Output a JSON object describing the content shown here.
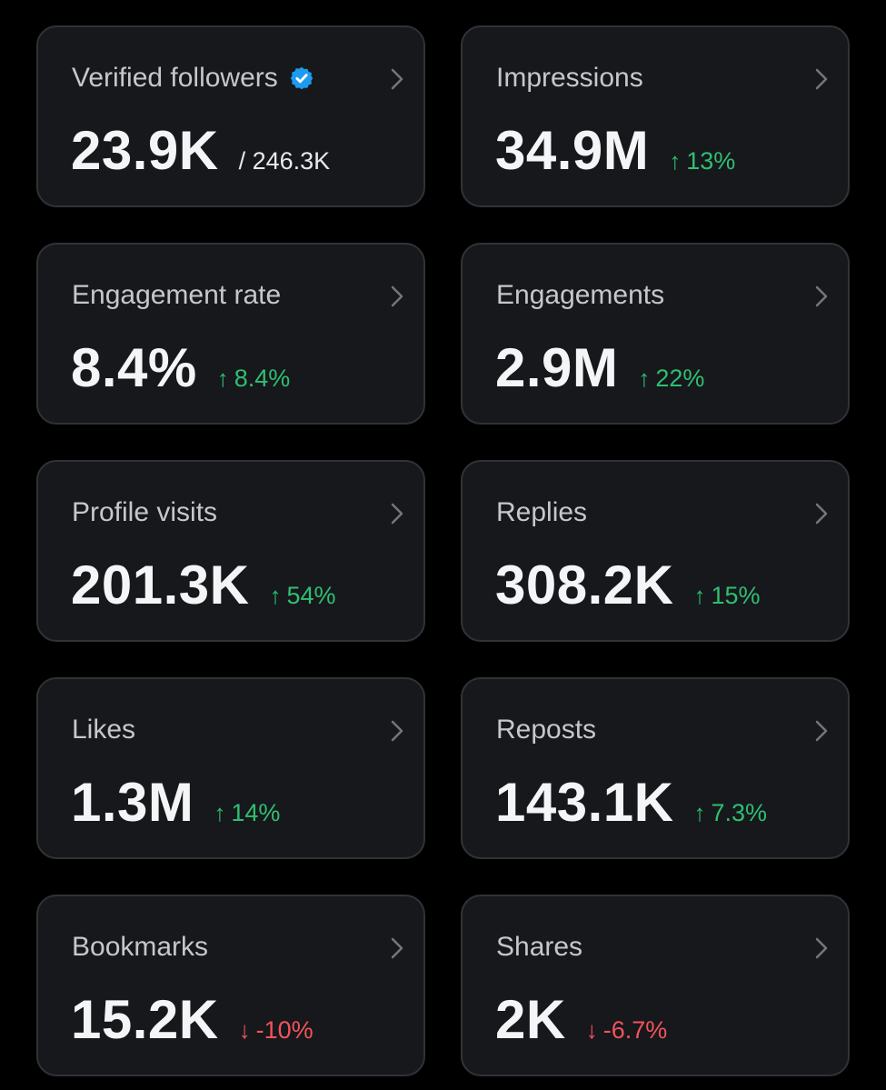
{
  "colors": {
    "background": "#000000",
    "card": "#16181c",
    "card_border": "#2f3336",
    "positive": "#2fbf71",
    "negative": "#f4535a",
    "verified_blue": "#1d9bf0"
  },
  "cards": [
    {
      "title": "Verified followers",
      "value": "23.9K",
      "sub": "/ 246.3K",
      "verified": true
    },
    {
      "title": "Impressions",
      "value": "34.9M",
      "arrow": "↑",
      "delta": "13%",
      "trend": "up"
    },
    {
      "title": "Engagement rate",
      "value": "8.4%",
      "arrow": "↑",
      "delta": "8.4%",
      "trend": "up"
    },
    {
      "title": "Engagements",
      "value": "2.9M",
      "arrow": "↑",
      "delta": "22%",
      "trend": "up"
    },
    {
      "title": "Profile visits",
      "value": "201.3K",
      "arrow": "↑",
      "delta": "54%",
      "trend": "up"
    },
    {
      "title": "Replies",
      "value": "308.2K",
      "arrow": "↑",
      "delta": "15%",
      "trend": "up"
    },
    {
      "title": "Likes",
      "value": "1.3M",
      "arrow": "↑",
      "delta": "14%",
      "trend": "up"
    },
    {
      "title": "Reposts",
      "value": "143.1K",
      "arrow": "↑",
      "delta": "7.3%",
      "trend": "up"
    },
    {
      "title": "Bookmarks",
      "value": "15.2K",
      "arrow": "↓",
      "delta": "-10%",
      "trend": "down"
    },
    {
      "title": "Shares",
      "value": "2K",
      "arrow": "↓",
      "delta": "-6.7%",
      "trend": "down"
    }
  ]
}
